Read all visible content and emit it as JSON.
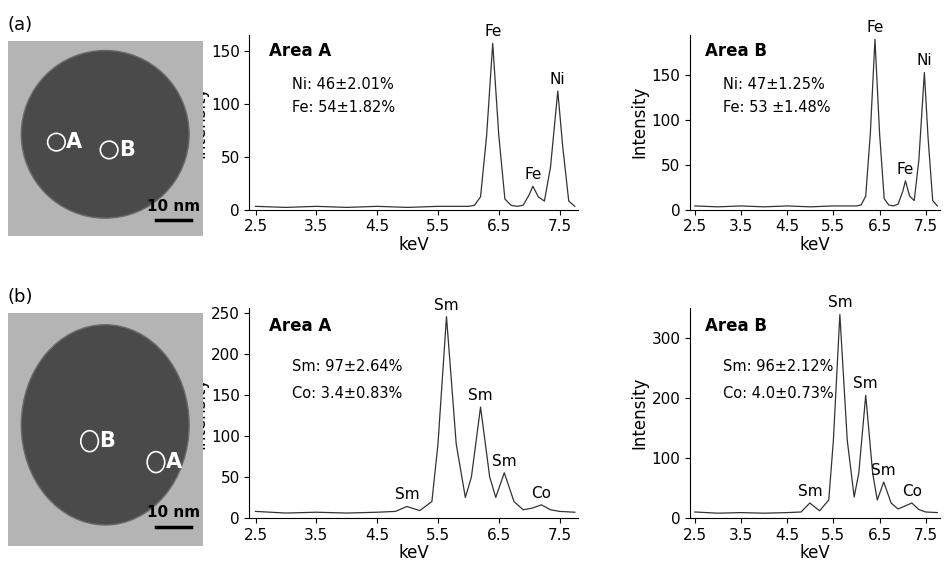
{
  "chart_data": [
    {
      "type": "line",
      "title": "Area A",
      "annotations": [
        "Ni: 46±2.01%",
        "Fe: 54±1.82%"
      ],
      "x_label": "keV",
      "y_label": "Intensity",
      "color": "#333333",
      "x": [
        2.5,
        3.0,
        3.5,
        4.0,
        4.5,
        5.0,
        5.5,
        5.8,
        6.0,
        6.1,
        6.2,
        6.3,
        6.4,
        6.5,
        6.6,
        6.7,
        6.8,
        6.9,
        7.0,
        7.06,
        7.15,
        7.25,
        7.35,
        7.47,
        7.55,
        7.65,
        7.75
      ],
      "values": [
        3,
        2,
        3,
        2,
        3,
        2,
        3,
        3,
        3,
        4,
        12,
        70,
        157,
        70,
        10,
        4,
        3,
        4,
        14,
        22,
        12,
        8,
        40,
        112,
        60,
        8,
        3
      ],
      "peak_labels": [
        {
          "text": "Fe",
          "x": 6.4,
          "y": 157
        },
        {
          "text": "Fe",
          "x": 7.06,
          "y": 22
        },
        {
          "text": "Ni",
          "x": 7.47,
          "y": 112
        }
      ],
      "xlim": [
        2.4,
        7.8
      ],
      "xticks": [
        2.5,
        3.5,
        4.5,
        5.5,
        6.5,
        7.5
      ],
      "ylim": [
        0,
        165
      ],
      "yticks": [
        0,
        50,
        100,
        150
      ]
    },
    {
      "type": "line",
      "title": "Area B",
      "annotations": [
        "Ni: 47±1.25%",
        "Fe: 53 ±1.48%"
      ],
      "x_label": "keV",
      "y_label": "Intensity",
      "color": "#333333",
      "x": [
        2.5,
        3.0,
        3.5,
        4.0,
        4.5,
        5.0,
        5.5,
        5.8,
        6.0,
        6.1,
        6.2,
        6.3,
        6.4,
        6.5,
        6.6,
        6.7,
        6.8,
        6.9,
        7.0,
        7.06,
        7.15,
        7.25,
        7.35,
        7.47,
        7.55,
        7.65,
        7.75
      ],
      "values": [
        4,
        3,
        4,
        3,
        4,
        3,
        4,
        4,
        4,
        5,
        15,
        85,
        190,
        85,
        12,
        5,
        4,
        6,
        20,
        32,
        15,
        10,
        55,
        153,
        80,
        10,
        4
      ],
      "peak_labels": [
        {
          "text": "Fe",
          "x": 6.4,
          "y": 190
        },
        {
          "text": "Fe",
          "x": 7.06,
          "y": 32
        },
        {
          "text": "Ni",
          "x": 7.47,
          "y": 153
        }
      ],
      "xlim": [
        2.4,
        7.8
      ],
      "xticks": [
        2.5,
        3.5,
        4.5,
        5.5,
        6.5,
        7.5
      ],
      "ylim": [
        0,
        195
      ],
      "yticks": [
        0,
        50,
        100,
        150
      ]
    },
    {
      "type": "line",
      "title": "Area A",
      "annotations": [
        "Sm: 97±2.64%",
        "Co: 3.4±0.83%"
      ],
      "x_label": "keV",
      "y_label": "Intensity",
      "color": "#333333",
      "x": [
        2.5,
        3.0,
        3.5,
        4.0,
        4.5,
        4.8,
        4.99,
        5.2,
        5.4,
        5.5,
        5.64,
        5.8,
        5.95,
        6.05,
        6.2,
        6.35,
        6.45,
        6.59,
        6.75,
        6.9,
        7.05,
        7.2,
        7.35,
        7.5,
        7.75
      ],
      "values": [
        8,
        6,
        7,
        6,
        7,
        8,
        14,
        9,
        20,
        90,
        245,
        90,
        25,
        50,
        135,
        50,
        25,
        55,
        20,
        10,
        12,
        16,
        10,
        8,
        7
      ],
      "peak_labels": [
        {
          "text": "Sm",
          "x": 4.99,
          "y": 14
        },
        {
          "text": "Sm",
          "x": 5.64,
          "y": 245
        },
        {
          "text": "Sm",
          "x": 6.2,
          "y": 135
        },
        {
          "text": "Sm",
          "x": 6.59,
          "y": 55
        },
        {
          "text": "Co",
          "x": 7.2,
          "y": 16
        }
      ],
      "xlim": [
        2.4,
        7.8
      ],
      "xticks": [
        2.5,
        3.5,
        4.5,
        5.5,
        6.5,
        7.5
      ],
      "ylim": [
        0,
        255
      ],
      "yticks": [
        0,
        50,
        100,
        150,
        200,
        250
      ]
    },
    {
      "type": "line",
      "title": "Area B",
      "annotations": [
        "Sm: 96±2.12%",
        "Co: 4.0±0.73%"
      ],
      "x_label": "keV",
      "y_label": "Intensity",
      "color": "#333333",
      "x": [
        2.5,
        3.0,
        3.5,
        4.0,
        4.5,
        4.8,
        4.99,
        5.2,
        5.4,
        5.5,
        5.64,
        5.8,
        5.95,
        6.05,
        6.2,
        6.35,
        6.45,
        6.59,
        6.75,
        6.9,
        7.05,
        7.2,
        7.35,
        7.5,
        7.75
      ],
      "values": [
        10,
        8,
        9,
        8,
        9,
        10,
        25,
        12,
        30,
        130,
        340,
        130,
        35,
        75,
        205,
        75,
        30,
        60,
        25,
        15,
        20,
        25,
        14,
        10,
        9
      ],
      "peak_labels": [
        {
          "text": "Sm",
          "x": 4.99,
          "y": 25
        },
        {
          "text": "Sm",
          "x": 5.64,
          "y": 340
        },
        {
          "text": "Sm",
          "x": 6.2,
          "y": 205
        },
        {
          "text": "Sm",
          "x": 6.59,
          "y": 60
        },
        {
          "text": "Co",
          "x": 7.2,
          "y": 25
        }
      ],
      "xlim": [
        2.4,
        7.8
      ],
      "xticks": [
        2.5,
        3.5,
        4.5,
        5.5,
        6.5,
        7.5
      ],
      "ylim": [
        0,
        350
      ],
      "yticks": [
        0,
        100,
        200,
        300
      ]
    }
  ],
  "images": [
    {
      "panel": "(a)",
      "points": [
        "A",
        "B"
      ],
      "scale_bar": "10 nm"
    },
    {
      "panel": "(b)",
      "points": [
        "B",
        "A"
      ],
      "scale_bar": "10 nm"
    }
  ]
}
